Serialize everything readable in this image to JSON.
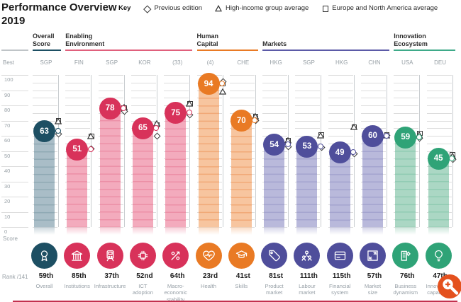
{
  "title": {
    "line1": "Performance Overview",
    "line2": "2019"
  },
  "key": {
    "label": "Key",
    "items": [
      {
        "symbol": "diamond",
        "label": "Previous edition"
      },
      {
        "symbol": "triangle",
        "label": "High-income group average"
      },
      {
        "symbol": "square",
        "label": "Europe and North America average"
      }
    ]
  },
  "axis": {
    "best_label": "Best",
    "zero_label": "0",
    "score_label": "Score",
    "rank_label": "Rank /141",
    "ticks": [
      100,
      90,
      80,
      70,
      60,
      50,
      40,
      30,
      20,
      10
    ]
  },
  "groups": [
    {
      "id": "overall",
      "label": "Overall\nScore",
      "start": 0,
      "end": 0
    },
    {
      "id": "enabling",
      "label": "Enabling\nEnvironment",
      "start": 1,
      "end": 4
    },
    {
      "id": "human",
      "label": "Human\nCapital",
      "start": 5,
      "end": 6
    },
    {
      "id": "markets",
      "label": "Markets",
      "start": 7,
      "end": 10
    },
    {
      "id": "innovation",
      "label": "Innovation\nEcosystem",
      "start": 11,
      "end": 12
    }
  ],
  "colors": {
    "overall": {
      "accent": "#1D4F63",
      "bar": "#A9BDC7",
      "stripe": "#8FA9B4",
      "underline": "#1D4F63"
    },
    "enabling": {
      "accent": "#D8325A",
      "bar": "#F3ABBD",
      "stripe": "#EC8FA6",
      "underline": "#E0607C"
    },
    "human": {
      "accent": "#E97A24",
      "bar": "#F7C59F",
      "stripe": "#F1A977",
      "underline": "#E97A24"
    },
    "markets": {
      "accent": "#4F4E9B",
      "bar": "#B9B9DB",
      "stripe": "#A4A4CF",
      "underline": "#5B5AA7"
    },
    "innovation": {
      "accent": "#2FA377",
      "bar": "#ABD7C4",
      "stripe": "#90CBB2",
      "underline": "#3EAA89"
    },
    "axis_line": "#BFC4C7",
    "grid": "#DCDCDC",
    "marker_line": "#C9CDD0",
    "marker_stroke": "#3A3A3A",
    "bottom_rule": "#C2304E",
    "zoom_widget": "#E4511E"
  },
  "chart_data": {
    "type": "bar",
    "ylim": [
      0,
      100
    ],
    "grid": "dashed, every 5 units; axis labels every 10",
    "legend_position": "top",
    "title": "Performance Overview 2019",
    "columns": [
      {
        "group": "overall",
        "best_country": "SGP",
        "score": 63,
        "rank": "59th",
        "label": "Overall",
        "icon": "award-icon",
        "markers": {
          "previous_edition": 61.5,
          "high_income_avg": 71.5,
          "europe_na_avg": 70
        }
      },
      {
        "group": "enabling",
        "best_country": "FIN",
        "score": 51,
        "rank": "85th",
        "label": "Institutions",
        "icon": "bank-icon",
        "markers": {
          "previous_edition": 51.5,
          "high_income_avg": 61.5,
          "europe_na_avg": 60
        }
      },
      {
        "group": "enabling",
        "best_country": "SGP",
        "score": 78,
        "rank": "37th",
        "label": "Infrastructure",
        "icon": "train-icon",
        "markers": {
          "previous_edition": 76.5,
          "high_income_avg": 80.5,
          "europe_na_avg": 78.5
        }
      },
      {
        "group": "enabling",
        "best_country": "KOR",
        "score": 65,
        "rank": "52nd",
        "label": "ICT\nadoption",
        "icon": "chip-icon",
        "markers": {
          "previous_edition": 60,
          "high_income_avg": 70,
          "europe_na_avg": 67.5
        }
      },
      {
        "group": "enabling",
        "best_country": "(33)",
        "score": 75,
        "rank": "64th",
        "label": "Macro-\neconomic\nstability",
        "icon": "percent-trend-icon",
        "markers": {
          "previous_edition": 74,
          "high_income_avg": 83,
          "europe_na_avg": 81.5
        }
      },
      {
        "group": "human",
        "best_country": "(4)",
        "score": 94,
        "rank": "23rd",
        "label": "Health",
        "icon": "heart-pulse-icon",
        "markers": {
          "previous_edition": 96,
          "high_income_avg": 91,
          "europe_na_avg": 94.5
        }
      },
      {
        "group": "human",
        "best_country": "CHE",
        "score": 70,
        "rank": "41st",
        "label": "Skills",
        "icon": "graduate-icon",
        "markers": {
          "previous_edition": 70.5,
          "high_income_avg": 74.5,
          "europe_na_avg": 73
        }
      },
      {
        "group": "markets",
        "best_country": "HKG",
        "score": 54,
        "rank": "81st",
        "label": "Product\nmarket",
        "icon": "price-tag-icon",
        "markers": {
          "previous_edition": 53,
          "high_income_avg": 59,
          "europe_na_avg": 57
        }
      },
      {
        "group": "markets",
        "best_country": "SGP",
        "score": 53,
        "rank": "111th",
        "label": "Labour\nmarket",
        "icon": "people-icon",
        "markers": {
          "previous_edition": 52.5,
          "high_income_avg": 62,
          "europe_na_avg": 61
        }
      },
      {
        "group": "markets",
        "best_country": "HKG",
        "score": 49,
        "rank": "115th",
        "label": "Financial\nsystem",
        "icon": "credit-card-icon",
        "markers": {
          "previous_edition": 48.5,
          "high_income_avg": 67.5,
          "europe_na_avg": 66
        }
      },
      {
        "group": "markets",
        "best_country": "CHN",
        "score": 60,
        "rank": "57th",
        "label": "Market\nsize",
        "icon": "expand-icon",
        "markers": {
          "previous_edition": 60.5,
          "high_income_avg": 62,
          "europe_na_avg": 61
        }
      },
      {
        "group": "innovation",
        "best_country": "USA",
        "score": 59,
        "rank": "76th",
        "label": "Business\ndynamism",
        "icon": "building-gear-icon",
        "markers": {
          "previous_edition": 58.5,
          "high_income_avg": 62.5,
          "europe_na_avg": 62
        }
      },
      {
        "group": "innovation",
        "best_country": "DEU",
        "score": 45,
        "rank": "47th",
        "label": "Innovation\ncapability",
        "icon": "lightbulb-icon",
        "markers": {
          "previous_edition": 44.5,
          "high_income_avg": 48.5,
          "europe_na_avg": 48
        }
      }
    ]
  },
  "zoom_widget": {
    "name": "zoom-in-magnifier"
  }
}
